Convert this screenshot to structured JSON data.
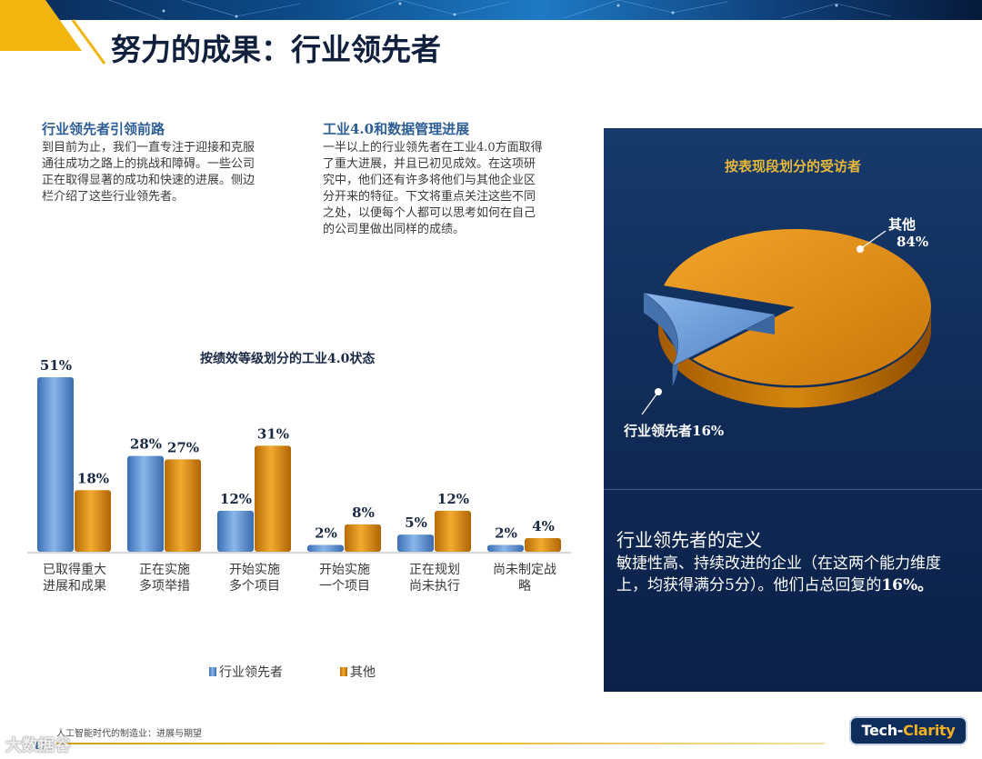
{
  "page": {
    "title": "努力的成果：行业领先者",
    "left_section": {
      "heading": "行业领先者引领前路",
      "lines": [
        "到目前为止，我们一直专注于迎接和克服",
        "通往成功之路上的挑战和障碍。一些公司",
        "正在取得显著的成功和快速的进展。侧边",
        "栏介绍了这些行业领先者。"
      ]
    },
    "right_section": {
      "heading": "工业4.0和数据管理进展",
      "lines": [
        "一半以上的行业领先者在工业4.0方面取得",
        "了重大进展，并且已初见成效。在这项研",
        "究中，他们还有许多将他们与其他企业区",
        "分开来的特征。下文将重点关注这些不同",
        "之处，以便每个人都可以思考如何在自己",
        "的公司里做出同样的成绩。"
      ]
    },
    "definition": {
      "title": "行业领先者的定义",
      "text": "敏捷性高、持续改进的企业（在这两个能力维度上，均获得满分5分）。他们占总回复的",
      "pct": "16%。"
    },
    "footer": {
      "page_number": "11",
      "text": "人工智能时代的制造业：进展与期望",
      "logo_left": "Tech-",
      "logo_right": "Clarity",
      "watermark": "大数据谷"
    }
  },
  "chart_data": [
    {
      "type": "bar",
      "title": "按绩效等级划分的工业4.0状态",
      "categories": [
        [
          "已取得重大",
          "进展和成果"
        ],
        [
          "正在实施",
          "多项举措"
        ],
        [
          "开始实施",
          "多个项目"
        ],
        [
          "开始实施",
          "一个项目"
        ],
        [
          "正在规划",
          "尚未执行"
        ],
        [
          "尚未制定战",
          "略"
        ]
      ],
      "series": [
        {
          "name": "行业领先者",
          "values": [
            51,
            28,
            12,
            2,
            5,
            2
          ],
          "color": "#4f84c9"
        },
        {
          "name": "其他",
          "values": [
            18,
            27,
            31,
            8,
            12,
            4
          ],
          "color": "#d88a10"
        }
      ],
      "unit": "%",
      "ylim": [
        0,
        55
      ],
      "legend": "bottom"
    },
    {
      "type": "pie",
      "title": "按表现段划分的受访者",
      "slices": [
        {
          "label": "其他",
          "value": 84,
          "pct_label": "84%",
          "color": "#d88a10"
        },
        {
          "label": "行业领先者",
          "value": 16,
          "pct_label": "行业领先者16%",
          "color": "#5a8fd0"
        }
      ]
    }
  ]
}
